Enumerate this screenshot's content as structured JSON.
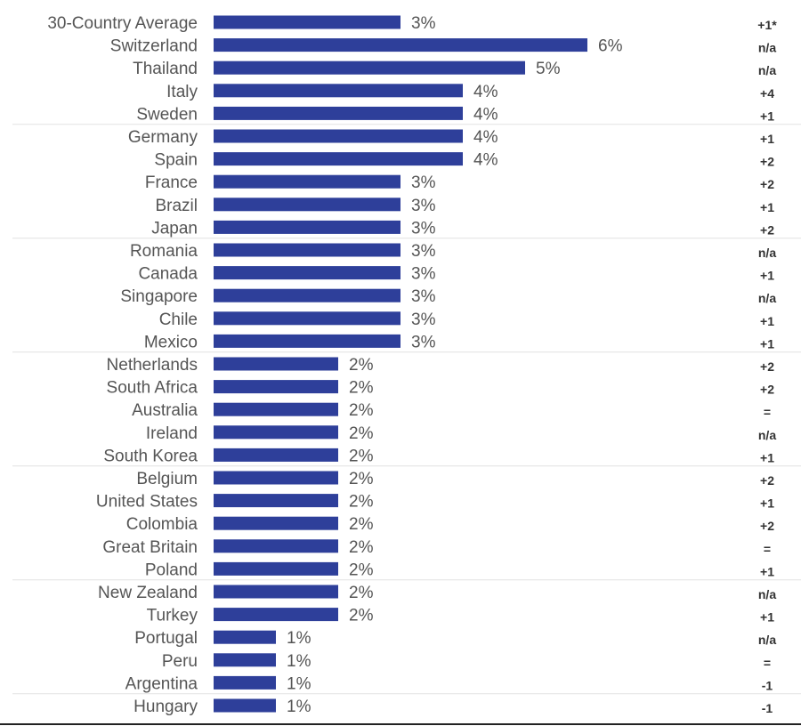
{
  "chart_data": {
    "type": "bar",
    "orientation": "horizontal",
    "categories": [
      "30-Country Average",
      "Switzerland",
      "Thailand",
      "Italy",
      "Sweden",
      "Germany",
      "Spain",
      "France",
      "Brazil",
      "Japan",
      "Romania",
      "Canada",
      "Singapore",
      "Chile",
      "Mexico",
      "Netherlands",
      "South Africa",
      "Australia",
      "Ireland",
      "South Korea",
      "Belgium",
      "United States",
      "Colombia",
      "Great Britain",
      "Poland",
      "New Zealand",
      "Turkey",
      "Portugal",
      "Peru",
      "Argentina",
      "Hungary"
    ],
    "values": [
      3,
      6,
      5,
      4,
      4,
      4,
      4,
      3,
      3,
      3,
      3,
      3,
      3,
      3,
      3,
      2,
      2,
      2,
      2,
      2,
      2,
      2,
      2,
      2,
      2,
      2,
      2,
      1,
      1,
      1,
      1
    ],
    "value_labels": [
      "3%",
      "6%",
      "5%",
      "4%",
      "4%",
      "4%",
      "4%",
      "3%",
      "3%",
      "3%",
      "3%",
      "3%",
      "3%",
      "3%",
      "3%",
      "2%",
      "2%",
      "2%",
      "2%",
      "2%",
      "2%",
      "2%",
      "2%",
      "2%",
      "2%",
      "2%",
      "2%",
      "1%",
      "1%",
      "1%",
      "1%"
    ],
    "changes": [
      "+1*",
      "n/a",
      "n/a",
      "+4",
      "+1",
      "+1",
      "+2",
      "+2",
      "+1",
      "+2",
      "n/a",
      "+1",
      "n/a",
      "+1",
      "+1",
      "+2",
      "+2",
      "=",
      "n/a",
      "+1",
      "+2",
      "+1",
      "+2",
      "=",
      "+1",
      "n/a",
      "+1",
      "n/a",
      "=",
      "-1",
      "-1"
    ],
    "bar_color": "#2e3f9a",
    "xlim": [
      0,
      6
    ]
  }
}
